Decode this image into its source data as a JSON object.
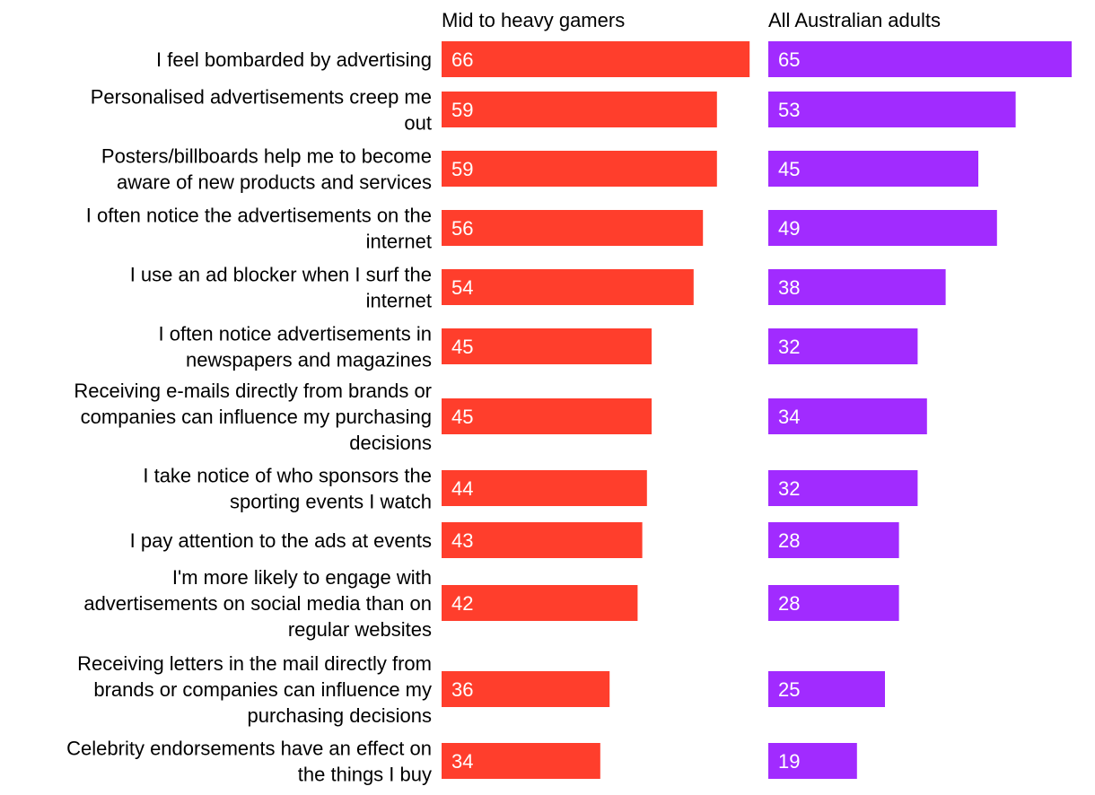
{
  "chart_data": {
    "type": "bar",
    "orientation": "horizontal",
    "legend": "top",
    "grid": false,
    "xlim": [
      0,
      70
    ],
    "categories": [
      [
        "I feel bombarded by advertising"
      ],
      [
        "Personalised advertisements creep me",
        "out"
      ],
      [
        "Posters/billboards help me to become",
        "aware of new products and services"
      ],
      [
        "I often notice the advertisements on the",
        "internet"
      ],
      [
        "I use an ad blocker when I surf the",
        "internet"
      ],
      [
        "I often notice advertisements in",
        "newspapers and magazines"
      ],
      [
        "Receiving e-mails directly from brands or",
        "companies can influence my purchasing",
        "decisions"
      ],
      [
        "I take notice of who sponsors the",
        "sporting events I watch"
      ],
      [
        "I pay attention to the ads at events"
      ],
      [
        "I'm more likely to engage with",
        "advertisements on social media than on",
        "regular websites"
      ],
      [
        "Receiving letters in the mail directly from",
        "brands or companies can influence my",
        "purchasing decisions"
      ],
      [
        "Celebrity endorsements have an effect on",
        "the things I buy"
      ]
    ],
    "series": [
      {
        "name": "Mid to heavy gamers",
        "color": "#ff3e2c",
        "values": [
          66,
          59,
          59,
          56,
          54,
          45,
          45,
          44,
          43,
          42,
          36,
          34
        ]
      },
      {
        "name": "All Australian adults",
        "color": "#a12bff",
        "values": [
          65,
          53,
          45,
          49,
          38,
          32,
          34,
          32,
          28,
          28,
          25,
          19
        ]
      }
    ],
    "label_color": "#ffffff",
    "text_color": "#000000"
  }
}
